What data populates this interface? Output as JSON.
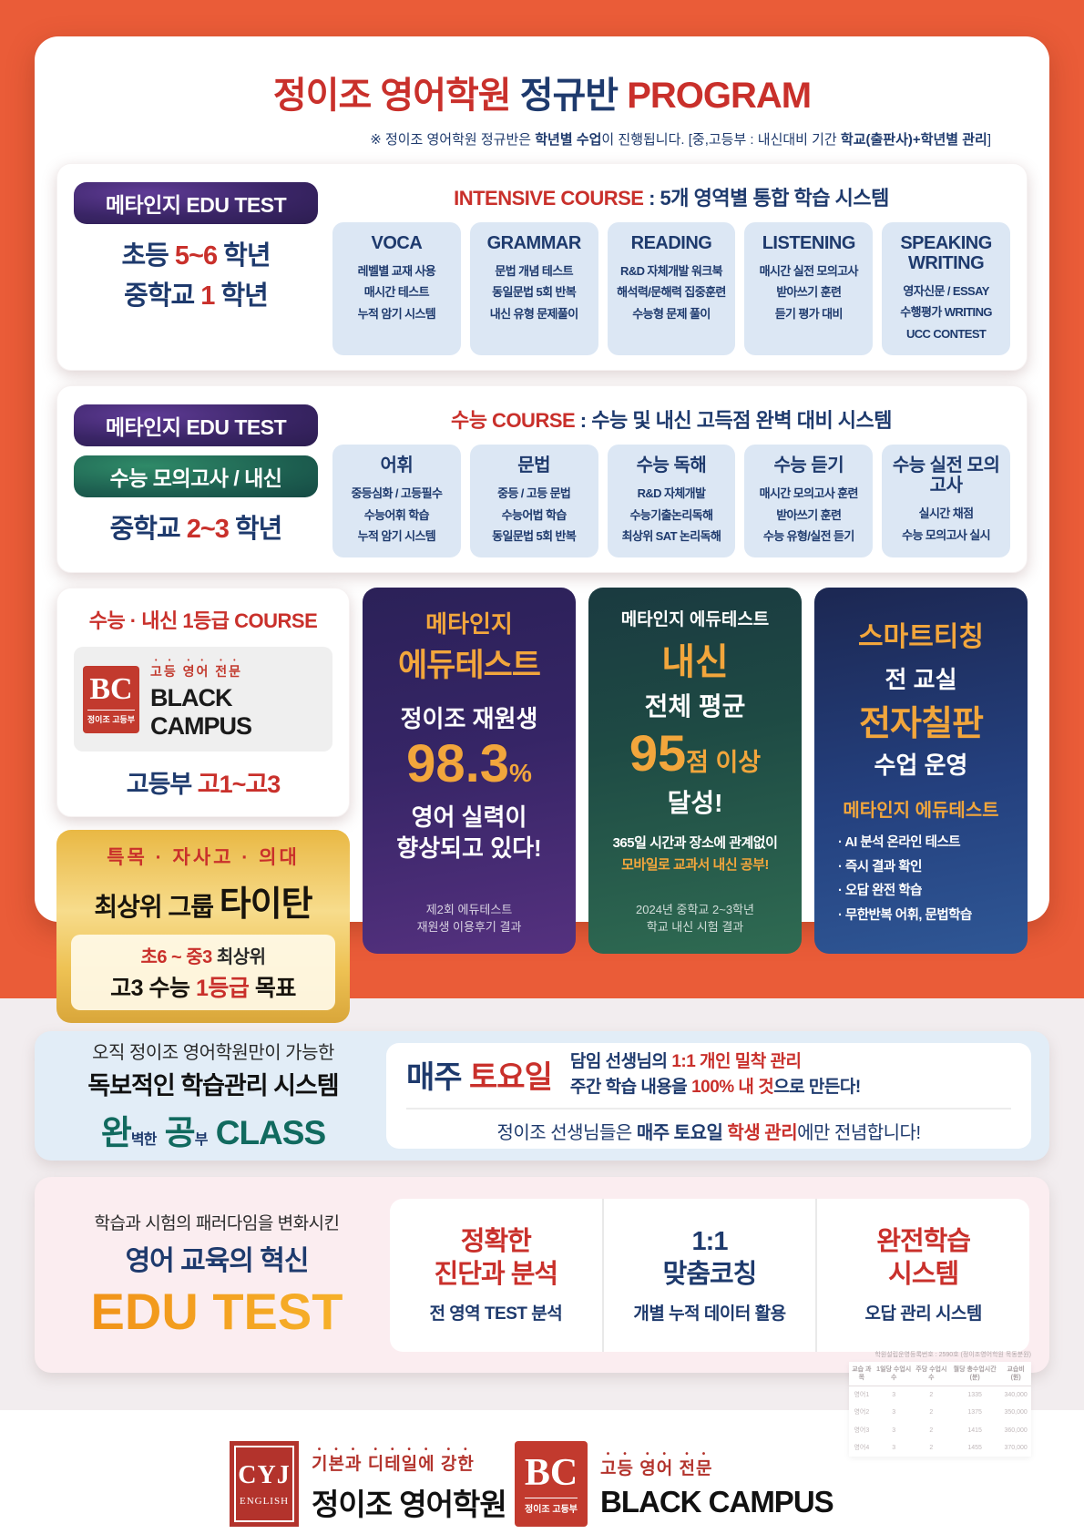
{
  "colors": {
    "page_orange": "#EA5C38",
    "red": "#C9302B",
    "navy": "#1E3A6D",
    "accent_orange": "#F2A63C",
    "teal": "#116A5F",
    "gold": "#E9B844"
  },
  "header": {
    "title_red1": "정이조 영어학원 ",
    "title_navy": "정규반 ",
    "title_red2": "PROGRAM",
    "note_pre": "※ 정이조 영어학원 정규반은 ",
    "note_b1": "학년별 수업",
    "note_mid": "이 진행됩니다. [중,고등부 : 내신대비 기간 ",
    "note_b2": "학교(출판사)+학년별 관리",
    "note_post": "]"
  },
  "section1": {
    "badge": "메타인지 EDU TEST",
    "grade1": {
      "pre": "초등 ",
      "num": "5~6",
      "post": " 학년"
    },
    "grade2": {
      "pre": "중학교 ",
      "num": "1",
      "post": " 학년"
    },
    "header_red": "INTENSIVE COURSE",
    "header_navy": " : 5개 영역별 통합 학습 시스템",
    "columns": [
      {
        "title": "VOCA",
        "lines": [
          "레벨별 교재 사용",
          "매시간 테스트",
          "누적 암기 시스템"
        ]
      },
      {
        "title": "GRAMMAR",
        "lines": [
          "문법 개념 테스트",
          "동일문법 5회 반복",
          "내신 유형 문제풀이"
        ]
      },
      {
        "title": "READING",
        "lines": [
          "R&D 자체개발 워크북",
          "해석력/문해력 집중훈련",
          "수능형 문제 풀이"
        ]
      },
      {
        "title": "LISTENING",
        "lines": [
          "매시간 실전 모의고사",
          "받아쓰기 훈련",
          "듣기 평가 대비"
        ]
      },
      {
        "title": "SPEAKING WRITING",
        "lines": [
          "영자신문 / ESSAY",
          "수행평가 WRITING",
          "UCC CONTEST"
        ]
      }
    ]
  },
  "section2": {
    "badge": "메타인지 EDU TEST",
    "badge2": "수능 모의고사 / 내신",
    "grade": {
      "pre": "중학교 ",
      "num": "2~3",
      "post": " 학년"
    },
    "header_red": "수능 COURSE",
    "header_navy": " : 수능 및 내신 고득점 완벽 대비 시스템",
    "columns": [
      {
        "title": "어휘",
        "lines": [
          "중등심화 / 고등필수",
          "수능어휘 학습",
          "누적 암기 시스템"
        ]
      },
      {
        "title": "문법",
        "lines": [
          "중등 / 고등 문법",
          "수능어법 학습",
          "동일문법 5회 반복"
        ]
      },
      {
        "title": "수능 독해",
        "lines": [
          "R&D 자체개발",
          "수능기출논리독해",
          "최상위 SAT 논리독해"
        ]
      },
      {
        "title": "수능 듣기",
        "lines": [
          "매시간 모의고사 훈련",
          "받아쓰기 훈련",
          "수능 유형/실전 듣기"
        ]
      },
      {
        "title": "수능 실전 모의고사",
        "lines": [
          "실시간 채점",
          "수능 모의고사 실시"
        ]
      }
    ]
  },
  "black_campus": {
    "title": "수능 · 내신 1등급 COURSE",
    "logo_monogram": "BC",
    "logo_sub": "정이조 고등부",
    "tagline": "고등 영어 전문",
    "name": "BLACK CAMPUS",
    "grade_navy": "고등부 ",
    "grade_red": "고1~고3"
  },
  "titan": {
    "line1": "특목 · 자사고 · 의대",
    "line2_normal": "최상위 그룹 ",
    "line2_big": "타이탄",
    "inner1_red": "초6 ~ 중3 ",
    "inner1_dark": "최상위",
    "inner2_d1": "고3 수능 ",
    "inner2_red": "1등급",
    "inner2_d2": " 목표"
  },
  "promo_purple": {
    "t1": "메타인지",
    "t2": "에듀테스트",
    "t3": "정이조 재원생",
    "pct": "98.3",
    "pct_unit": "%",
    "t4a": "영어 실력이",
    "t4b": "향상되고 있다!",
    "fn1": "제2회 에듀테스트",
    "fn2": "재원생 이용후기 결과"
  },
  "promo_green": {
    "t1": "메타인지 에듀테스트",
    "t2": "내신",
    "t3": "전체 평균",
    "score": "95",
    "score_suffix": "점 이상",
    "t4": "달성!",
    "l1": "365일 시간과 장소에 관계없이",
    "l2": "모바일로 교과서 내신 공부!",
    "fn1": "2024년 중학교 2~3학년",
    "fn2": "학교 내신 시험 결과"
  },
  "promo_blue": {
    "t1": "스마트티칭",
    "t2": "전 교실",
    "t3": "전자칠판",
    "t4": "수업 운영",
    "t5": "메타인지 에듀테스트",
    "bullets": [
      "· AI 분석 온라인 테스트",
      "· 즉시 결과 확인",
      "· 오답 완전 학습",
      "· 무한반복 어휘, 문법학습"
    ]
  },
  "wangong": {
    "l1": "오직 정이조 영어학원만이 가능한",
    "l2": "독보적인 학습관리 시스템",
    "big1": "완",
    "small1": "벽한",
    "big2": " 공",
    "small2": "부",
    "big3": " CLASS",
    "badge_navy": "매주 ",
    "badge_red": "토요일",
    "r1_navy": "담임 선생님의 ",
    "r1_red": "1:1 개인 밀착 관리",
    "r2_n1": "주간 학습 내용을 ",
    "r2_red": "100% 내 것",
    "r2_n2": "으로 만든다!",
    "r3_n1": "정이조 선생님들은 ",
    "r3_b1": "매주 토요일",
    "r3_red": " 학생 관리",
    "r3_n2": "에만 전념합니다!"
  },
  "edutest": {
    "l1": "학습과 시험의 패러다임을 변화시킨",
    "l2": "영어 교육의 혁신",
    "l3": "EDU TEST",
    "cols": [
      {
        "title1": "정확한",
        "title2": "진단과 분석",
        "desc": "전 영역 TEST 분석"
      },
      {
        "title1": "1:1",
        "title2": "맞춤코칭",
        "desc": "개별 누적 데이터 활용"
      },
      {
        "title1": "완전학습",
        "title2": "시스템",
        "desc": "오답 관리 시스템"
      }
    ]
  },
  "footer": {
    "cyj_monogram": "CYJ",
    "cyj_sub": "ENGLISH",
    "cyj_tagline": "기본과  디테일에 강한",
    "cyj_name": "정이조 영어학원",
    "bc_monogram": "BC",
    "bc_sub": "정이조 고등부",
    "bc_tagline": "고등 영어 전문",
    "bc_name": "BLACK CAMPUS",
    "fee_note": "학원설립운영등록번호 : 2590호 (정이조영어학원 목동분원)",
    "fee_headers": [
      "교습 과목",
      "1일당 수업시수",
      "주당 수업시수",
      "월당 총수업시간(분)",
      "교습비 (원)"
    ],
    "fee_rows": [
      [
        "영어1",
        "3",
        "2",
        "1335",
        "340,000"
      ],
      [
        "영어2",
        "3",
        "2",
        "1375",
        "350,000"
      ],
      [
        "영어3",
        "3",
        "2",
        "1415",
        "360,000"
      ],
      [
        "영어4",
        "3",
        "2",
        "1455",
        "370,000"
      ]
    ]
  }
}
